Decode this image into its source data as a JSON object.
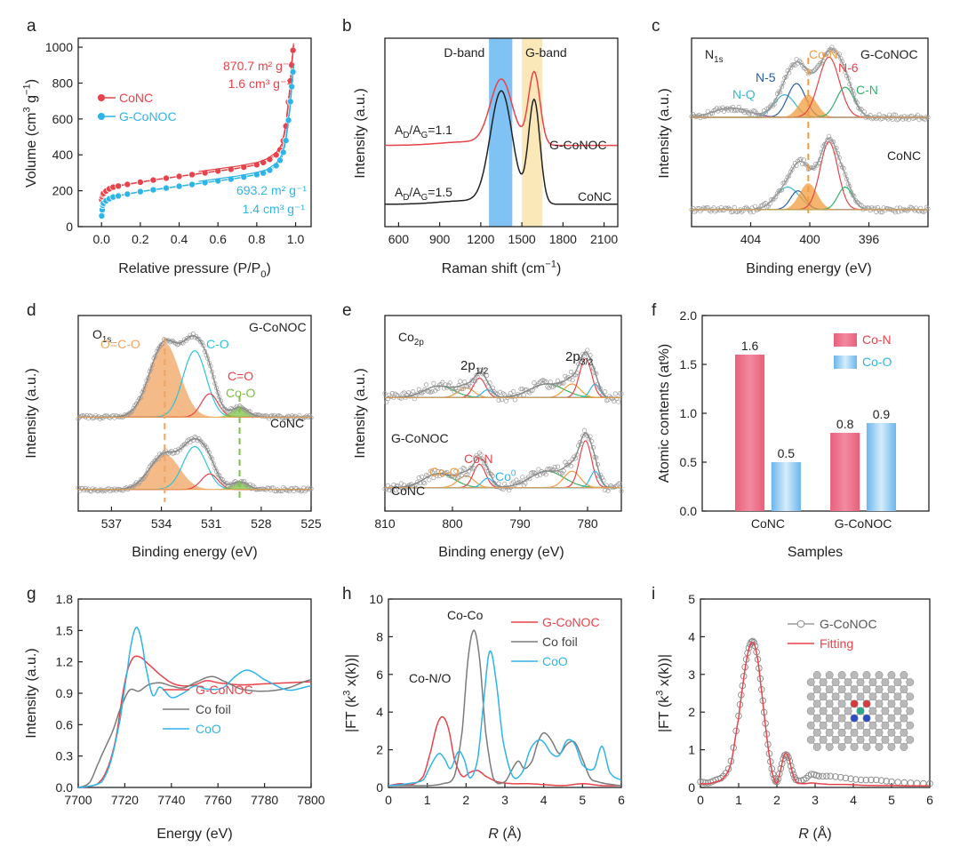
{
  "colors": {
    "red": "#e8424a",
    "blue": "#2fb4e8",
    "black": "#222222",
    "grey": "#7a7a7a",
    "orange": "#f39c3c",
    "green": "#7bc142",
    "darkblue": "#2a5ca8",
    "purple": "#a44bc3"
  },
  "chart_data": [
    {
      "panel": "a",
      "type": "line",
      "xlabel": "Relative pressure (P/P",
      "xlabel_sub": "0",
      "xlabel_end": ")",
      "ylabel": "Volume (cm",
      "ylabel_sup": "3",
      "ylabel_mid": " g",
      "ylabel_sup2": "−1",
      "ylabel_end": ")",
      "xlim": [
        -0.12,
        1.08
      ],
      "ylim": [
        0,
        1050
      ],
      "xticks": [
        "0.0",
        "0.2",
        "0.4",
        "0.6",
        "0.8",
        "1.0"
      ],
      "yticks": [
        "0",
        "200",
        "400",
        "600",
        "800",
        "1000"
      ],
      "legend": [
        "CoNC",
        "G-CoNOC"
      ],
      "annotations": [
        "870.7 m² g⁻¹",
        "1.6 cm³ g⁻¹",
        "693.2 m² g⁻¹",
        "1.4 cm³ g⁻¹"
      ],
      "series": [
        {
          "name": "CoNC",
          "x": [
            0.001,
            0.005,
            0.01,
            0.03,
            0.06,
            0.1,
            0.2,
            0.3,
            0.4,
            0.5,
            0.6,
            0.7,
            0.8,
            0.85,
            0.9,
            0.93,
            0.95,
            0.97,
            0.98,
            0.99
          ],
          "y": [
            150,
            175,
            185,
            205,
            220,
            230,
            248,
            265,
            280,
            295,
            310,
            325,
            345,
            365,
            400,
            450,
            560,
            760,
            900,
            1010
          ]
        },
        {
          "name": "G-CoNOC",
          "x": [
            0.001,
            0.005,
            0.01,
            0.03,
            0.06,
            0.1,
            0.2,
            0.3,
            0.4,
            0.5,
            0.6,
            0.7,
            0.8,
            0.85,
            0.9,
            0.93,
            0.95,
            0.97,
            0.98,
            0.99
          ],
          "y": [
            60,
            110,
            130,
            150,
            165,
            175,
            195,
            210,
            225,
            240,
            255,
            270,
            290,
            305,
            340,
            390,
            480,
            650,
            780,
            890
          ]
        }
      ]
    },
    {
      "panel": "b",
      "type": "line",
      "xlabel": "Raman shift (cm",
      "xlabel_sup": "−1",
      "xlabel_end": ")",
      "ylabel": "Intensity (a.u.)",
      "xlim": [
        500,
        2200
      ],
      "xticks": [
        "600",
        "900",
        "1200",
        "1500",
        "1800",
        "2100"
      ],
      "bands": [
        "D-band",
        "G-band"
      ],
      "labels": [
        "G-CoNOC",
        "CoNC"
      ],
      "ratios": [
        {
          "pre": "A",
          "sub1": "D",
          "mid": "/A",
          "sub2": "G",
          "post": "=1.1"
        },
        {
          "pre": "A",
          "sub1": "D",
          "mid": "/A",
          "sub2": "G",
          "post": "=1.5"
        }
      ],
      "series": [
        {
          "name": "G-CoNOC",
          "peaks": [
            [
              1350,
              0.55
            ],
            [
              1590,
              0.62
            ]
          ],
          "offset": 0.5
        },
        {
          "name": "CoNC",
          "peaks": [
            [
              1350,
              0.95
            ],
            [
              1590,
              0.88
            ]
          ],
          "offset": 0.0
        }
      ]
    },
    {
      "panel": "c",
      "type": "line",
      "xlabel": "Binding energy (eV)",
      "ylabel": "Intensity (a.u.)",
      "xlim": [
        408,
        392
      ],
      "xticks": [
        "404",
        "400",
        "396"
      ],
      "element": "N",
      "element_sub": "1s",
      "components": [
        "N-Q",
        "N-5",
        "Co-N",
        "N-6",
        "C-N"
      ],
      "labels": [
        "G-CoNOC",
        "CoNC"
      ]
    },
    {
      "panel": "d",
      "type": "line",
      "xlabel": "Binding energy (eV)",
      "ylabel": "Intensity (a.u.)",
      "xlim": [
        539,
        525
      ],
      "xticks": [
        "537",
        "534",
        "531",
        "528",
        "525"
      ],
      "element": "O",
      "element_sub": "1s",
      "components": [
        "O=C-O",
        "C-O",
        "C=O",
        "Co-O"
      ],
      "labels": [
        "G-CoNOC",
        "CoNC"
      ]
    },
    {
      "panel": "e",
      "type": "line",
      "xlabel": "Binding energy (eV)",
      "ylabel": "Intensity (a.u.)",
      "xlim": [
        810,
        775
      ],
      "xticks": [
        "810",
        "800",
        "790",
        "780"
      ],
      "element": "Co",
      "element_sub": "2p",
      "peaks": [
        {
          "base": "2p",
          "sub": "1/2"
        },
        {
          "base": "2p",
          "sub": "3/2"
        }
      ],
      "components": [
        "Co-O",
        "Co-N",
        "Co"
      ],
      "co_sup": "0",
      "labels": [
        "G-CoNOC",
        "CoNC"
      ]
    },
    {
      "panel": "f",
      "type": "bar",
      "xlabel": "Samples",
      "ylabel": "Atomic contents (at%)",
      "ylim": [
        0,
        2.0
      ],
      "yticks": [
        "0.0",
        "0.5",
        "1.0",
        "1.5",
        "2.0"
      ],
      "categories": [
        "CoNC",
        "G-CoNOC"
      ],
      "series": [
        {
          "name": "Co-N",
          "values": [
            1.6,
            0.8
          ]
        },
        {
          "name": "Co-O",
          "values": [
            0.5,
            0.9
          ]
        }
      ],
      "value_labels": [
        "1.6",
        "0.5",
        "0.8",
        "0.9"
      ]
    },
    {
      "panel": "g",
      "type": "line",
      "xlabel": "Energy (eV)",
      "ylabel": "Intensity (a.u.)",
      "xlim": [
        7700,
        7800
      ],
      "ylim": [
        0,
        1.8
      ],
      "xticks": [
        "7700",
        "7720",
        "7740",
        "7760",
        "7780",
        "7800"
      ],
      "yticks": [
        "0.0",
        "0.3",
        "0.6",
        "0.9",
        "1.2",
        "1.5",
        "1.8"
      ],
      "legend": [
        "G-CoNOC",
        "Co foil",
        "CoO"
      ],
      "series": [
        {
          "name": "G-CoNOC",
          "x": [
            7700,
            7708,
            7712,
            7716,
            7720,
            7723,
            7726,
            7730,
            7735,
            7740,
            7745,
            7750,
            7755,
            7760,
            7770,
            7780,
            7790,
            7800
          ],
          "y": [
            0,
            0.03,
            0.15,
            0.45,
            1.0,
            1.22,
            1.25,
            1.18,
            1.08,
            1.0,
            0.97,
            0.98,
            1.02,
            1.0,
            0.98,
            0.99,
            1.0,
            1.01
          ]
        },
        {
          "name": "Co foil",
          "x": [
            7700,
            7705,
            7709,
            7712,
            7715,
            7718,
            7722,
            7726,
            7730,
            7735,
            7740,
            7745,
            7750,
            7757,
            7762,
            7770,
            7780,
            7790,
            7800
          ],
          "y": [
            0,
            0.05,
            0.25,
            0.4,
            0.55,
            0.75,
            0.93,
            0.92,
            0.98,
            1.0,
            0.97,
            0.95,
            1.0,
            1.06,
            1.02,
            0.94,
            0.92,
            0.95,
            1.03
          ]
        },
        {
          "name": "CoO",
          "x": [
            7700,
            7710,
            7714,
            7718,
            7721,
            7723,
            7725,
            7727,
            7729,
            7732,
            7735,
            7740,
            7745,
            7750,
            7755,
            7762,
            7768,
            7773,
            7780,
            7790,
            7800
          ],
          "y": [
            0,
            0.05,
            0.25,
            0.65,
            1.1,
            1.4,
            1.53,
            1.42,
            1.15,
            0.88,
            0.96,
            0.86,
            0.9,
            0.97,
            0.94,
            0.95,
            1.07,
            1.12,
            1.03,
            0.93,
            0.97
          ]
        }
      ]
    },
    {
      "panel": "h",
      "type": "line",
      "xlabel_pre": "R",
      "xlabel": " (Å)",
      "ylabel": "|FT (k",
      "ylabel_sup": "3",
      "ylabel_end": " x(k))|",
      "xlim": [
        0,
        6
      ],
      "ylim": [
        0,
        10
      ],
      "xticks": [
        "0",
        "1",
        "2",
        "3",
        "4",
        "5",
        "6"
      ],
      "yticks": [
        "0",
        "2",
        "4",
        "6",
        "8",
        "10"
      ],
      "legend": [
        "G-CoNOC",
        "Co foil",
        "CoO"
      ],
      "annotations": [
        "Co-Co",
        "Co-N/O"
      ],
      "series": [
        {
          "name": "G-CoNOC",
          "x": [
            0,
            0.3,
            0.6,
            0.9,
            1.1,
            1.25,
            1.4,
            1.55,
            1.7,
            1.9,
            2.1,
            2.3,
            2.5,
            2.8,
            3.2,
            3.6,
            4.0,
            4.5,
            5.0,
            5.5,
            6.0
          ],
          "y": [
            0.1,
            0.2,
            0.15,
            0.6,
            2.0,
            3.3,
            3.75,
            3.1,
            1.5,
            0.6,
            0.8,
            0.9,
            0.6,
            0.3,
            0.2,
            0.2,
            0.15,
            0.1,
            0.2,
            0.1,
            0.1
          ]
        },
        {
          "name": "Co foil",
          "x": [
            0,
            0.5,
            1.0,
            1.4,
            1.7,
            1.9,
            2.05,
            2.2,
            2.35,
            2.5,
            2.7,
            3.0,
            3.2,
            3.35,
            3.5,
            3.7,
            3.85,
            4.0,
            4.2,
            4.4,
            4.6,
            4.8,
            5.0,
            5.2,
            5.4,
            5.6,
            6.0
          ],
          "y": [
            0.1,
            0.1,
            0.1,
            0.2,
            0.6,
            3.0,
            6.8,
            8.35,
            6.8,
            3.0,
            0.5,
            0.3,
            1.0,
            1.4,
            1.0,
            1.4,
            2.4,
            2.9,
            2.5,
            1.8,
            2.3,
            2.4,
            1.5,
            0.5,
            0.3,
            0.2,
            0.1
          ]
        },
        {
          "name": "CoO",
          "x": [
            0,
            0.5,
            0.9,
            1.1,
            1.3,
            1.45,
            1.6,
            1.8,
            1.95,
            2.1,
            2.3,
            2.45,
            2.6,
            2.75,
            2.95,
            3.2,
            3.45,
            3.65,
            3.85,
            4.0,
            4.2,
            4.4,
            4.6,
            4.8,
            5.0,
            5.3,
            5.5,
            5.7,
            6.0
          ],
          "y": [
            0.1,
            0.2,
            0.4,
            1.2,
            1.8,
            1.5,
            1.0,
            1.9,
            1.5,
            0.5,
            1.5,
            4.5,
            7.2,
            6.0,
            2.5,
            0.6,
            0.8,
            2.0,
            2.5,
            2.4,
            1.8,
            1.7,
            2.5,
            2.3,
            1.2,
            1.0,
            2.2,
            0.8,
            0.4
          ]
        }
      ]
    },
    {
      "panel": "i",
      "type": "line",
      "xlabel_pre": "R",
      "xlabel": " (Å)",
      "ylabel": "|FT (k",
      "ylabel_sup": "3",
      "ylabel_end": " x(k))|",
      "xlim": [
        0,
        6
      ],
      "ylim": [
        0,
        5
      ],
      "xticks": [
        "0",
        "1",
        "2",
        "3",
        "4",
        "5",
        "6"
      ],
      "yticks": [
        "0",
        "1",
        "2",
        "3",
        "4",
        "5"
      ],
      "legend": [
        "G-CoNOC",
        "Fitting"
      ],
      "series": [
        {
          "name": "G-CoNOC",
          "x": [
            0,
            0.2,
            0.4,
            0.6,
            0.8,
            1.0,
            1.1,
            1.2,
            1.3,
            1.4,
            1.5,
            1.6,
            1.7,
            1.8,
            1.9,
            2.0,
            2.1,
            2.2,
            2.3,
            2.4,
            2.5,
            2.7,
            2.9,
            3.1,
            3.4,
            3.8,
            4.2,
            4.6,
            5.0,
            5.5,
            6.0
          ],
          "y": [
            0.15,
            0.12,
            0.2,
            0.3,
            0.7,
            1.9,
            2.7,
            3.4,
            3.8,
            3.85,
            3.4,
            2.6,
            1.7,
            0.9,
            0.35,
            0.15,
            0.5,
            0.85,
            0.8,
            0.45,
            0.2,
            0.2,
            0.35,
            0.3,
            0.3,
            0.25,
            0.2,
            0.2,
            0.15,
            0.12,
            0.1
          ]
        },
        {
          "name": "Fitting",
          "x": [
            0,
            0.2,
            0.4,
            0.6,
            0.8,
            1.0,
            1.1,
            1.2,
            1.3,
            1.4,
            1.5,
            1.6,
            1.7,
            1.8,
            1.9,
            2.0,
            2.1,
            2.2,
            2.3,
            2.4,
            2.5,
            2.7,
            2.9,
            3.1,
            3.4,
            3.8,
            4.2,
            4.6,
            5.0,
            5.5,
            6.0
          ],
          "y": [
            0.1,
            0.1,
            0.15,
            0.25,
            0.65,
            1.85,
            2.65,
            3.35,
            3.78,
            3.82,
            3.38,
            2.55,
            1.65,
            0.85,
            0.3,
            0.12,
            0.48,
            0.88,
            0.82,
            0.42,
            0.15,
            0.1,
            0.12,
            0.1,
            0.08,
            0.08,
            0.06,
            0.05,
            0.05,
            0.04,
            0.04
          ]
        }
      ]
    }
  ]
}
